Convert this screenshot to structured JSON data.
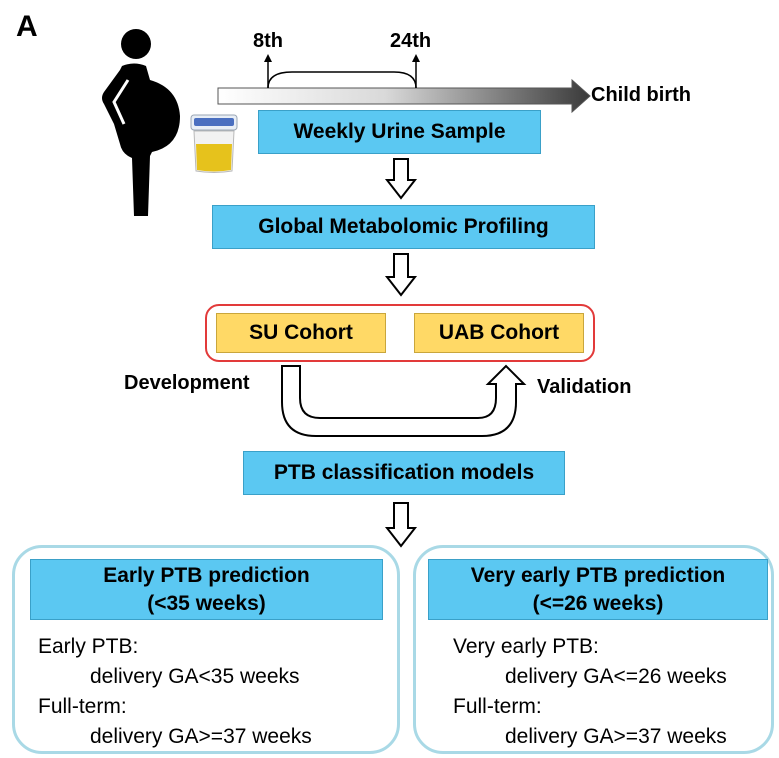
{
  "panel_label": "A",
  "timeline": {
    "start_label": "8th",
    "end_label": "24th",
    "birth_label": "Child birth"
  },
  "steps": {
    "urine": "Weekly Urine Sample",
    "profiling": "Global Metabolomic Profiling",
    "models": "PTB classification models"
  },
  "cohorts": {
    "su": "SU Cohort",
    "uab": "UAB Cohort",
    "development": "Development",
    "validation": "Validation"
  },
  "predictions": [
    {
      "title": "Early PTB prediction",
      "subtitle": "(<35 weeks)",
      "case_label": "Early PTB:",
      "case_def": "delivery GA<35 weeks",
      "control_label": "Full-term:",
      "control_def": "delivery GA>=37 weeks"
    },
    {
      "title": "Very early PTB prediction",
      "subtitle": "(<=26 weeks)",
      "case_label": "Very early PTB:",
      "case_def": "delivery GA<=26 weeks",
      "control_label": "Full-term:",
      "control_def": "delivery GA>=37 weeks"
    }
  ],
  "colors": {
    "step_box": "#5BC8F2",
    "cohort_box": "#FFD966",
    "cohort_border": "#E23A3A",
    "outer_border": "#A9D9E6"
  }
}
